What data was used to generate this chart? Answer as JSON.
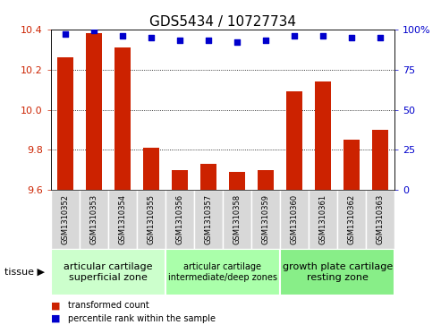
{
  "title": "GDS5434 / 10727734",
  "samples": [
    "GSM1310352",
    "GSM1310353",
    "GSM1310354",
    "GSM1310355",
    "GSM1310356",
    "GSM1310357",
    "GSM1310358",
    "GSM1310359",
    "GSM1310360",
    "GSM1310361",
    "GSM1310362",
    "GSM1310363"
  ],
  "bar_values": [
    10.26,
    10.38,
    10.31,
    9.81,
    9.7,
    9.73,
    9.69,
    9.7,
    10.09,
    10.14,
    9.85,
    9.9
  ],
  "dot_values": [
    97,
    99,
    96,
    95,
    93,
    93,
    92,
    93,
    96,
    96,
    95,
    95
  ],
  "ylim_left": [
    9.6,
    10.4
  ],
  "ylim_right": [
    0,
    100
  ],
  "yticks_left": [
    9.6,
    9.8,
    10.0,
    10.2,
    10.4
  ],
  "yticks_right": [
    0,
    25,
    50,
    75,
    100
  ],
  "bar_color": "#cc2200",
  "dot_color": "#0000cc",
  "background_plot": "#ffffff",
  "sample_box_color": "#d8d8d8",
  "tissue_groups": [
    {
      "label": "articular cartilage\nsuperficial zone",
      "indices": [
        0,
        1,
        2,
        3
      ],
      "color": "#ccffcc",
      "fontsize": 8
    },
    {
      "label": "articular cartilage\nintermediate/deep zones",
      "indices": [
        4,
        5,
        6,
        7
      ],
      "color": "#aaffaa",
      "fontsize": 7
    },
    {
      "label": "growth plate cartilage\nresting zone",
      "indices": [
        8,
        9,
        10,
        11
      ],
      "color": "#88ee88",
      "fontsize": 8
    }
  ],
  "tissue_label": "tissue",
  "legend_bar_label": "transformed count",
  "legend_dot_label": "percentile rank within the sample",
  "title_fontsize": 11,
  "tick_fontsize": 8,
  "sample_fontsize": 6,
  "tissue_fontsize": 8
}
